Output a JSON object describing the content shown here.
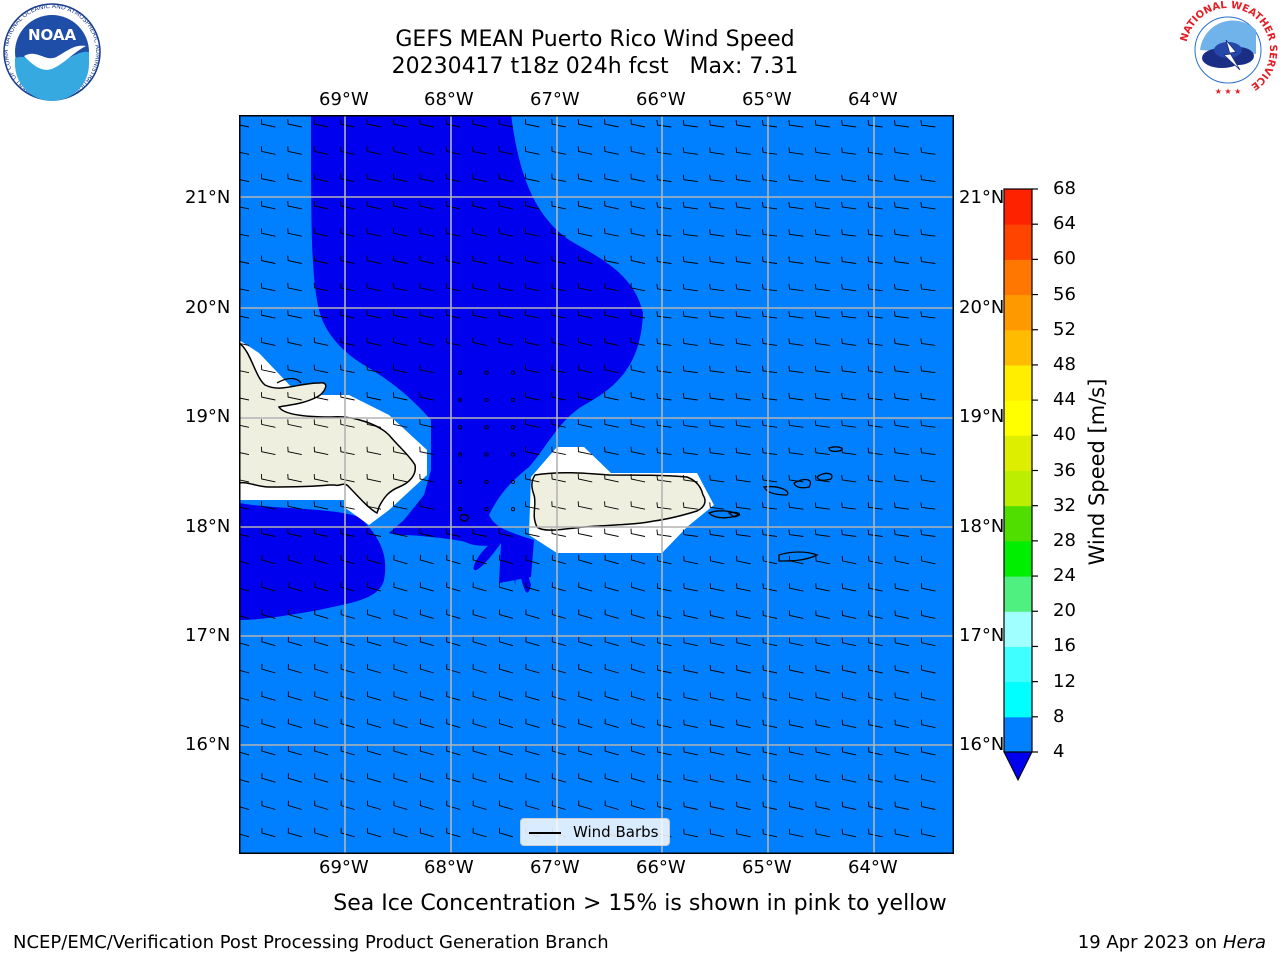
{
  "header": {
    "title_line1": "GEFS MEAN Puerto Rico Wind Speed",
    "title_line2": "20230417 t18z 024h fcst   Max: 7.31"
  },
  "logos": {
    "noaa_text": "NOAA",
    "noaa_ring": "NATIONAL OCEANIC AND ATMOSPHERIC ADMINISTRATION · U.S. DEPARTMENT OF COMMERCE",
    "nws_ring": "NATIONAL WEATHER SERVICE"
  },
  "map": {
    "lon_labels": [
      "69°W",
      "68°W",
      "67°W",
      "66°W",
      "65°W",
      "64°W"
    ],
    "lat_labels": [
      "21°N",
      "20°N",
      "19°N",
      "18°N",
      "17°N",
      "16°N"
    ],
    "legend_label": "Wind Barbs",
    "colors": {
      "ocean": "#0080ff",
      "calm": "#0000ee",
      "land": "#efefdf",
      "grid": "#b4b4b4"
    }
  },
  "colorbar": {
    "label": "Wind Speed [m/s]",
    "ticks": [
      "4",
      "8",
      "12",
      "16",
      "20",
      "24",
      "28",
      "32",
      "36",
      "40",
      "44",
      "48",
      "52",
      "56",
      "60",
      "64",
      "68"
    ],
    "colors": [
      "#0080ff",
      "#00ffff",
      "#40ffff",
      "#a0ffff",
      "#50f080",
      "#00ee00",
      "#50dd00",
      "#bbee00",
      "#ddee00",
      "#ffff00",
      "#ffee00",
      "#ffbb00",
      "#ff9900",
      "#ff7700",
      "#ff4400",
      "#ff2200",
      "#ff0000"
    ],
    "under_color": "#0000ee"
  },
  "note": "Sea Ice Concentration > 15% is shown in pink to yellow",
  "footer": {
    "left": "NCEP/EMC/Verification Post Processing Product Generation Branch",
    "date": "19 Apr 2023 on ",
    "machine": "Hera"
  }
}
